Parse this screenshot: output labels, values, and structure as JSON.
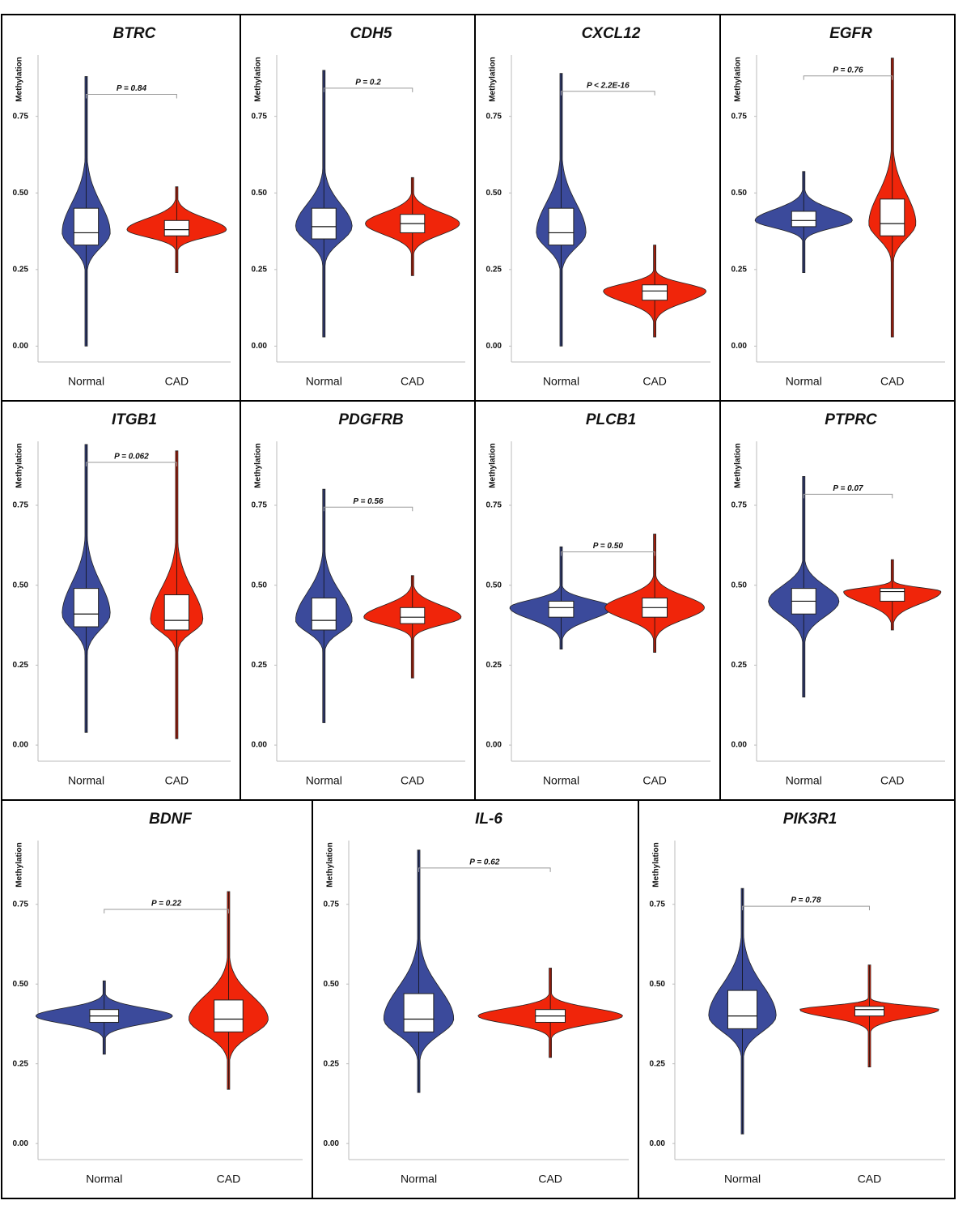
{
  "chart_data": [
    {
      "type": "violin",
      "title": "BTRC",
      "y_label": "Methylation",
      "annotation": "P = 0.84",
      "ylim": [
        -0.02,
        0.95
      ],
      "yticks": [
        {
          "value": 0,
          "label": "0.00"
        },
        {
          "value": 0.25,
          "label": "0.25"
        },
        {
          "value": 0.5,
          "label": "0.50"
        },
        {
          "value": 0.75,
          "label": "0.75"
        }
      ],
      "series": [
        {
          "name": "Normal",
          "color": "#3b4a9b",
          "min": 0.0,
          "q1": 0.33,
          "median": 0.37,
          "q3": 0.45,
          "max": 0.88
        },
        {
          "name": "CAD",
          "color": "#f0250a",
          "min": 0.24,
          "q1": 0.36,
          "median": 0.38,
          "q3": 0.41,
          "max": 0.52
        }
      ]
    },
    {
      "type": "violin",
      "title": "CDH5",
      "y_label": "Methylation",
      "annotation": "P = 0.2",
      "ylim": [
        -0.02,
        0.95
      ],
      "yticks": [
        {
          "value": 0,
          "label": "0.00"
        },
        {
          "value": 0.25,
          "label": "0.25"
        },
        {
          "value": 0.5,
          "label": "0.50"
        },
        {
          "value": 0.75,
          "label": "0.75"
        }
      ],
      "series": [
        {
          "name": "Normal",
          "color": "#3b4a9b",
          "min": 0.03,
          "q1": 0.35,
          "median": 0.39,
          "q3": 0.45,
          "max": 0.9
        },
        {
          "name": "CAD",
          "color": "#f0250a",
          "min": 0.23,
          "q1": 0.37,
          "median": 0.4,
          "q3": 0.43,
          "max": 0.55
        }
      ]
    },
    {
      "type": "violin",
      "title": "CXCL12",
      "y_label": "Methylation",
      "annotation": "P < 2.2E-16",
      "ylim": [
        -0.02,
        0.95
      ],
      "yticks": [
        {
          "value": 0,
          "label": "0.00"
        },
        {
          "value": 0.25,
          "label": "0.25"
        },
        {
          "value": 0.5,
          "label": "0.50"
        },
        {
          "value": 0.75,
          "label": "0.75"
        }
      ],
      "series": [
        {
          "name": "Normal",
          "color": "#3b4a9b",
          "min": 0.0,
          "q1": 0.33,
          "median": 0.37,
          "q3": 0.45,
          "max": 0.89
        },
        {
          "name": "CAD",
          "color": "#f0250a",
          "min": 0.03,
          "q1": 0.15,
          "median": 0.18,
          "q3": 0.2,
          "max": 0.33
        }
      ]
    },
    {
      "type": "violin",
      "title": "EGFR",
      "y_label": "Methylation",
      "annotation": "P = 0.76",
      "ylim": [
        -0.02,
        0.95
      ],
      "yticks": [
        {
          "value": 0,
          "label": "0.00"
        },
        {
          "value": 0.25,
          "label": "0.25"
        },
        {
          "value": 0.5,
          "label": "0.50"
        },
        {
          "value": 0.75,
          "label": "0.75"
        }
      ],
      "series": [
        {
          "name": "Normal",
          "color": "#3b4a9b",
          "min": 0.24,
          "q1": 0.39,
          "median": 0.41,
          "q3": 0.44,
          "max": 0.57
        },
        {
          "name": "CAD",
          "color": "#f0250a",
          "min": 0.03,
          "q1": 0.36,
          "median": 0.4,
          "q3": 0.48,
          "max": 0.94
        }
      ]
    },
    {
      "type": "violin",
      "title": "ITGB1",
      "y_label": "Methylation",
      "annotation": "P = 0.062",
      "ylim": [
        -0.02,
        0.95
      ],
      "yticks": [
        {
          "value": 0,
          "label": "0.00"
        },
        {
          "value": 0.25,
          "label": "0.25"
        },
        {
          "value": 0.5,
          "label": "0.50"
        },
        {
          "value": 0.75,
          "label": "0.75"
        }
      ],
      "series": [
        {
          "name": "Normal",
          "color": "#3b4a9b",
          "min": 0.04,
          "q1": 0.37,
          "median": 0.41,
          "q3": 0.49,
          "max": 0.94
        },
        {
          "name": "CAD",
          "color": "#f0250a",
          "min": 0.02,
          "q1": 0.36,
          "median": 0.39,
          "q3": 0.47,
          "max": 0.92
        }
      ]
    },
    {
      "type": "violin",
      "title": "PDGFRB",
      "y_label": "Methylation",
      "annotation": "P = 0.56",
      "ylim": [
        -0.02,
        0.95
      ],
      "yticks": [
        {
          "value": 0,
          "label": "0.00"
        },
        {
          "value": 0.25,
          "label": "0.25"
        },
        {
          "value": 0.5,
          "label": "0.50"
        },
        {
          "value": 0.75,
          "label": "0.75"
        }
      ],
      "series": [
        {
          "name": "Normal",
          "color": "#3b4a9b",
          "min": 0.07,
          "q1": 0.36,
          "median": 0.39,
          "q3": 0.46,
          "max": 0.8
        },
        {
          "name": "CAD",
          "color": "#f0250a",
          "min": 0.21,
          "q1": 0.38,
          "median": 0.4,
          "q3": 0.43,
          "max": 0.53
        }
      ]
    },
    {
      "type": "violin",
      "title": "PLCB1",
      "y_label": "Methylation",
      "annotation": "P = 0.50",
      "ylim": [
        -0.02,
        0.95
      ],
      "yticks": [
        {
          "value": 0,
          "label": "0.00"
        },
        {
          "value": 0.25,
          "label": "0.25"
        },
        {
          "value": 0.5,
          "label": "0.50"
        },
        {
          "value": 0.75,
          "label": "0.75"
        }
      ],
      "series": [
        {
          "name": "Normal",
          "color": "#3b4a9b",
          "min": 0.3,
          "q1": 0.4,
          "median": 0.43,
          "q3": 0.45,
          "max": 0.62
        },
        {
          "name": "CAD",
          "color": "#f0250a",
          "min": 0.29,
          "q1": 0.4,
          "median": 0.43,
          "q3": 0.46,
          "max": 0.66
        }
      ]
    },
    {
      "type": "violin",
      "title": "PTPRC",
      "y_label": "Methylation",
      "annotation": "P = 0.07",
      "ylim": [
        -0.02,
        0.95
      ],
      "yticks": [
        {
          "value": 0,
          "label": "0.00"
        },
        {
          "value": 0.25,
          "label": "0.25"
        },
        {
          "value": 0.5,
          "label": "0.50"
        },
        {
          "value": 0.75,
          "label": "0.75"
        }
      ],
      "series": [
        {
          "name": "Normal",
          "color": "#3b4a9b",
          "min": 0.15,
          "q1": 0.41,
          "median": 0.45,
          "q3": 0.49,
          "max": 0.84
        },
        {
          "name": "CAD",
          "color": "#f0250a",
          "min": 0.36,
          "q1": 0.45,
          "median": 0.48,
          "q3": 0.49,
          "max": 0.58
        }
      ]
    },
    {
      "type": "violin",
      "title": "BDNF",
      "y_label": "Methylation",
      "annotation": "P = 0.22",
      "ylim": [
        -0.02,
        0.95
      ],
      "yticks": [
        {
          "value": 0,
          "label": "0.00"
        },
        {
          "value": 0.25,
          "label": "0.25"
        },
        {
          "value": 0.5,
          "label": "0.50"
        },
        {
          "value": 0.75,
          "label": "0.75"
        }
      ],
      "series": [
        {
          "name": "Normal",
          "color": "#3b4a9b",
          "min": 0.28,
          "q1": 0.38,
          "median": 0.4,
          "q3": 0.42,
          "max": 0.51
        },
        {
          "name": "CAD",
          "color": "#f0250a",
          "min": 0.17,
          "q1": 0.35,
          "median": 0.39,
          "q3": 0.45,
          "max": 0.79
        }
      ]
    },
    {
      "type": "violin",
      "title": "IL-6",
      "y_label": "Methylation",
      "annotation": "P = 0.62",
      "ylim": [
        -0.02,
        0.95
      ],
      "yticks": [
        {
          "value": 0,
          "label": "0.00"
        },
        {
          "value": 0.25,
          "label": "0.25"
        },
        {
          "value": 0.5,
          "label": "0.50"
        },
        {
          "value": 0.75,
          "label": "0.75"
        }
      ],
      "series": [
        {
          "name": "Normal",
          "color": "#3b4a9b",
          "min": 0.16,
          "q1": 0.35,
          "median": 0.39,
          "q3": 0.47,
          "max": 0.92
        },
        {
          "name": "CAD",
          "color": "#f0250a",
          "min": 0.27,
          "q1": 0.38,
          "median": 0.4,
          "q3": 0.42,
          "max": 0.55
        }
      ]
    },
    {
      "type": "violin",
      "title": "PIK3R1",
      "y_label": "Methylation",
      "annotation": "P = 0.78",
      "ylim": [
        -0.02,
        0.95
      ],
      "yticks": [
        {
          "value": 0,
          "label": "0.00"
        },
        {
          "value": 0.25,
          "label": "0.25"
        },
        {
          "value": 0.5,
          "label": "0.50"
        },
        {
          "value": 0.75,
          "label": "0.75"
        }
      ],
      "series": [
        {
          "name": "Normal",
          "color": "#3b4a9b",
          "min": 0.03,
          "q1": 0.36,
          "median": 0.4,
          "q3": 0.48,
          "max": 0.8
        },
        {
          "name": "CAD",
          "color": "#f0250a",
          "min": 0.24,
          "q1": 0.4,
          "median": 0.42,
          "q3": 0.43,
          "max": 0.56
        }
      ]
    }
  ]
}
